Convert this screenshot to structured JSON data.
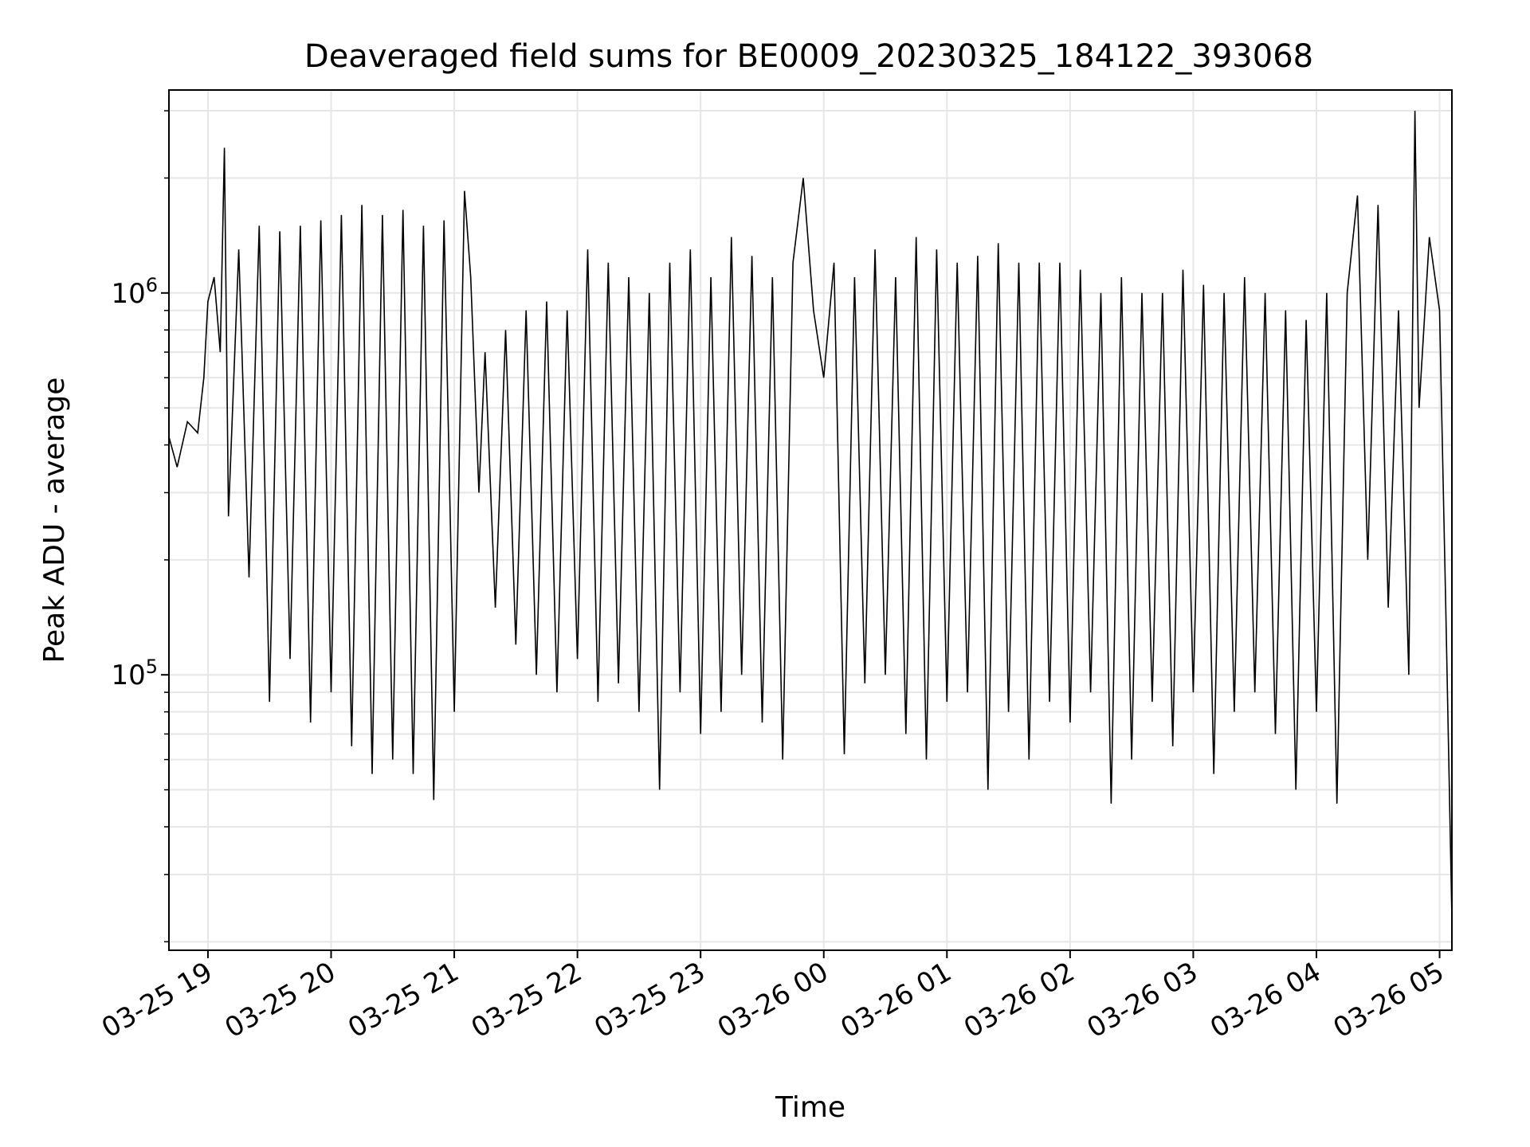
{
  "chart_data": {
    "type": "line",
    "title": "Deaveraged field sums for BE0009_20230325_184122_393068",
    "xlabel": "Time",
    "ylabel": "Peak ADU - average",
    "yscale": "log",
    "grid": true,
    "line_color": "#000000",
    "grid_color": "#e6e6e6",
    "xlim": [
      "2023-03-25 18:41",
      "2023-03-26 05:06"
    ],
    "ylim": [
      19000,
      3400000
    ],
    "x_ticks": [
      {
        "value": "2023-03-25 19:00",
        "label": "03-25 19"
      },
      {
        "value": "2023-03-25 20:00",
        "label": "03-25 20"
      },
      {
        "value": "2023-03-25 21:00",
        "label": "03-25 21"
      },
      {
        "value": "2023-03-25 22:00",
        "label": "03-25 22"
      },
      {
        "value": "2023-03-25 23:00",
        "label": "03-25 23"
      },
      {
        "value": "2023-03-26 00:00",
        "label": "03-26 00"
      },
      {
        "value": "2023-03-26 01:00",
        "label": "03-26 01"
      },
      {
        "value": "2023-03-26 02:00",
        "label": "03-26 02"
      },
      {
        "value": "2023-03-26 03:00",
        "label": "03-26 03"
      },
      {
        "value": "2023-03-26 04:00",
        "label": "03-26 04"
      },
      {
        "value": "2023-03-26 05:00",
        "label": "03-26 05"
      }
    ],
    "y_ticks": [
      {
        "value": 100000,
        "base": "10",
        "exp": "5"
      },
      {
        "value": 1000000,
        "base": "10",
        "exp": "6"
      }
    ],
    "series": [
      {
        "x": [
          "2023-03-25 18:41",
          "2023-03-25 18:45",
          "2023-03-25 18:50",
          "2023-03-25 18:55",
          "2023-03-25 18:58",
          "2023-03-25 19:00",
          "2023-03-25 19:03",
          "2023-03-25 19:06",
          "2023-03-25 19:08",
          "2023-03-25 19:10",
          "2023-03-25 19:15",
          "2023-03-25 19:20",
          "2023-03-25 19:25",
          "2023-03-25 19:30",
          "2023-03-25 19:35",
          "2023-03-25 19:40",
          "2023-03-25 19:45",
          "2023-03-25 19:50",
          "2023-03-25 19:55",
          "2023-03-25 20:00",
          "2023-03-25 20:05",
          "2023-03-25 20:10",
          "2023-03-25 20:15",
          "2023-03-25 20:20",
          "2023-03-25 20:25",
          "2023-03-25 20:30",
          "2023-03-25 20:35",
          "2023-03-25 20:40",
          "2023-03-25 20:45",
          "2023-03-25 20:50",
          "2023-03-25 20:55",
          "2023-03-25 21:00",
          "2023-03-25 21:05",
          "2023-03-25 21:08",
          "2023-03-25 21:12",
          "2023-03-25 21:15",
          "2023-03-25 21:20",
          "2023-03-25 21:25",
          "2023-03-25 21:30",
          "2023-03-25 21:35",
          "2023-03-25 21:40",
          "2023-03-25 21:45",
          "2023-03-25 21:50",
          "2023-03-25 21:55",
          "2023-03-25 22:00",
          "2023-03-25 22:05",
          "2023-03-25 22:10",
          "2023-03-25 22:15",
          "2023-03-25 22:20",
          "2023-03-25 22:25",
          "2023-03-25 22:30",
          "2023-03-25 22:35",
          "2023-03-25 22:40",
          "2023-03-25 22:45",
          "2023-03-25 22:50",
          "2023-03-25 22:55",
          "2023-03-25 23:00",
          "2023-03-25 23:05",
          "2023-03-25 23:10",
          "2023-03-25 23:15",
          "2023-03-25 23:20",
          "2023-03-25 23:25",
          "2023-03-25 23:30",
          "2023-03-25 23:35",
          "2023-03-25 23:40",
          "2023-03-25 23:45",
          "2023-03-25 23:50",
          "2023-03-25 23:55",
          "2023-03-26 00:00",
          "2023-03-26 00:05",
          "2023-03-26 00:10",
          "2023-03-26 00:15",
          "2023-03-26 00:20",
          "2023-03-26 00:25",
          "2023-03-26 00:30",
          "2023-03-26 00:35",
          "2023-03-26 00:40",
          "2023-03-26 00:45",
          "2023-03-26 00:50",
          "2023-03-26 00:55",
          "2023-03-26 01:00",
          "2023-03-26 01:05",
          "2023-03-26 01:10",
          "2023-03-26 01:15",
          "2023-03-26 01:20",
          "2023-03-26 01:25",
          "2023-03-26 01:30",
          "2023-03-26 01:35",
          "2023-03-26 01:40",
          "2023-03-26 01:45",
          "2023-03-26 01:50",
          "2023-03-26 01:55",
          "2023-03-26 02:00",
          "2023-03-26 02:05",
          "2023-03-26 02:10",
          "2023-03-26 02:15",
          "2023-03-26 02:20",
          "2023-03-26 02:25",
          "2023-03-26 02:30",
          "2023-03-26 02:35",
          "2023-03-26 02:40",
          "2023-03-26 02:45",
          "2023-03-26 02:50",
          "2023-03-26 02:55",
          "2023-03-26 03:00",
          "2023-03-26 03:05",
          "2023-03-26 03:10",
          "2023-03-26 03:15",
          "2023-03-26 03:20",
          "2023-03-26 03:25",
          "2023-03-26 03:30",
          "2023-03-26 03:35",
          "2023-03-26 03:40",
          "2023-03-26 03:45",
          "2023-03-26 03:50",
          "2023-03-26 03:55",
          "2023-03-26 04:00",
          "2023-03-26 04:05",
          "2023-03-26 04:10",
          "2023-03-26 04:15",
          "2023-03-26 04:20",
          "2023-03-26 04:25",
          "2023-03-26 04:30",
          "2023-03-26 04:35",
          "2023-03-26 04:40",
          "2023-03-26 04:45",
          "2023-03-26 04:48",
          "2023-03-26 04:50",
          "2023-03-26 04:55",
          "2023-03-26 05:00",
          "2023-03-26 05:03",
          "2023-03-26 05:06"
        ],
        "y": [
          420000,
          350000,
          460000,
          430000,
          600000,
          950000,
          1100000,
          700000,
          2400000,
          260000,
          1300000,
          180000,
          1500000,
          85000,
          1450000,
          110000,
          1500000,
          75000,
          1550000,
          90000,
          1600000,
          65000,
          1700000,
          55000,
          1600000,
          60000,
          1650000,
          55000,
          1500000,
          47000,
          1550000,
          80000,
          1850000,
          1100000,
          300000,
          700000,
          150000,
          800000,
          120000,
          900000,
          100000,
          950000,
          90000,
          900000,
          110000,
          1300000,
          85000,
          1200000,
          95000,
          1100000,
          80000,
          1000000,
          50000,
          1200000,
          90000,
          1300000,
          70000,
          1100000,
          80000,
          1400000,
          100000,
          1250000,
          75000,
          1100000,
          60000,
          1200000,
          2000000,
          900000,
          600000,
          1200000,
          62000,
          1100000,
          95000,
          1300000,
          100000,
          1100000,
          70000,
          1400000,
          60000,
          1300000,
          85000,
          1200000,
          90000,
          1250000,
          50000,
          1350000,
          80000,
          1200000,
          60000,
          1200000,
          85000,
          1200000,
          75000,
          1150000,
          90000,
          1000000,
          46000,
          1100000,
          60000,
          1000000,
          85000,
          1000000,
          65000,
          1150000,
          90000,
          1050000,
          55000,
          1000000,
          80000,
          1100000,
          90000,
          1000000,
          70000,
          900000,
          50000,
          850000,
          80000,
          1000000,
          46000,
          1000000,
          1800000,
          200000,
          1700000,
          150000,
          900000,
          100000,
          3000000,
          500000,
          1400000,
          900000,
          150000,
          23000
        ]
      }
    ]
  }
}
